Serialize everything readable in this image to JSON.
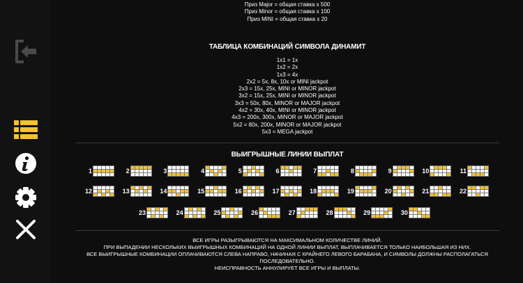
{
  "colors": {
    "accent": "#f6c12d",
    "background": "#0e0e0e",
    "text": "#ffffff"
  },
  "sidebar": {
    "items": [
      {
        "name": "exit-icon",
        "state": "disabled"
      },
      {
        "name": "paytable-list-icon",
        "state": "active"
      },
      {
        "name": "info-icon",
        "state": "normal"
      },
      {
        "name": "settings-gear-icon",
        "state": "normal"
      },
      {
        "name": "close-icon",
        "state": "normal"
      }
    ]
  },
  "jackpots": [
    "Приз Major = общая ставка x 500",
    "Приз Minor = общая ставка x 100",
    "Приз MINI = общая ставка x 20"
  ],
  "dynamite": {
    "title": "ТАБЛИЦА КОМБИНАЦИЙ СИМВОЛА ДИНАМИТ",
    "rows": [
      "1x1 = 1x",
      "1x2 = 2x",
      "1x3 = 4x",
      "2x2 = 5x, 8x, 10x or MINI jackpot",
      "2x3 = 15x, 25x, MINI or MINOR jackpot",
      "3x2 = 15x, 25x, MINI or MINOR jackpot",
      "3x3 = 50x, 80x, MINOR or MAJOR jackpot",
      "4x2 = 30x, 40x, MINI or MINOR jackpot",
      "4x3 = 200x, 300x, MINOR or MAJOR jackpot",
      "5x2 = 80x, 200x, MINOR or MAJOR jackpot",
      "5x3 = MEGA jackpot"
    ]
  },
  "paylines": {
    "title": "ВЫИГРЫШНЫЕ ЛИНИИ ВЫПЛАТ",
    "lines": [
      {
        "n": "1",
        "rows": [
          1,
          1,
          1,
          1,
          1
        ]
      },
      {
        "n": "2",
        "rows": [
          0,
          0,
          0,
          0,
          0
        ]
      },
      {
        "n": "3",
        "rows": [
          2,
          2,
          2,
          2,
          2
        ]
      },
      {
        "n": "4",
        "rows": [
          0,
          1,
          2,
          1,
          0
        ]
      },
      {
        "n": "5",
        "rows": [
          2,
          1,
          0,
          1,
          2
        ]
      },
      {
        "n": "6",
        "rows": [
          0,
          0,
          1,
          0,
          0
        ]
      },
      {
        "n": "7",
        "rows": [
          2,
          2,
          1,
          2,
          2
        ]
      },
      {
        "n": "8",
        "rows": [
          1,
          2,
          2,
          2,
          1
        ]
      },
      {
        "n": "9",
        "rows": [
          1,
          0,
          0,
          0,
          1
        ]
      },
      {
        "n": "10",
        "rows": [
          2,
          0,
          0,
          0,
          2
        ]
      },
      {
        "n": "11",
        "rows": [
          0,
          2,
          2,
          2,
          0
        ]
      },
      {
        "n": "12",
        "rows": [
          2,
          1,
          2,
          1,
          2
        ]
      },
      {
        "n": "13",
        "rows": [
          0,
          1,
          0,
          1,
          0
        ]
      },
      {
        "n": "14",
        "rows": [
          1,
          1,
          2,
          1,
          1
        ]
      },
      {
        "n": "15",
        "rows": [
          1,
          1,
          0,
          1,
          1
        ]
      },
      {
        "n": "16",
        "rows": [
          1,
          0,
          1,
          0,
          1
        ]
      },
      {
        "n": "17",
        "rows": [
          1,
          2,
          1,
          2,
          1
        ]
      },
      {
        "n": "18",
        "rows": [
          2,
          1,
          1,
          1,
          2
        ]
      },
      {
        "n": "19",
        "rows": [
          0,
          1,
          1,
          1,
          0
        ]
      },
      {
        "n": "20",
        "rows": [
          1,
          0,
          2,
          0,
          1
        ]
      },
      {
        "n": "21",
        "rows": [
          2,
          2,
          0,
          2,
          2
        ]
      },
      {
        "n": "22",
        "rows": [
          0,
          0,
          2,
          0,
          0
        ]
      },
      {
        "n": "23",
        "rows": [
          0,
          2,
          0,
          2,
          0
        ]
      },
      {
        "n": "24",
        "rows": [
          2,
          0,
          2,
          0,
          2
        ]
      },
      {
        "n": "25",
        "rows": [
          1,
          2,
          0,
          2,
          1
        ]
      },
      {
        "n": "26",
        "rows": [
          0,
          1,
          2,
          2,
          2
        ]
      },
      {
        "n": "27",
        "rows": [
          2,
          1,
          0,
          0,
          0
        ]
      },
      {
        "n": "28",
        "rows": [
          0,
          0,
          0,
          1,
          2
        ]
      },
      {
        "n": "29",
        "rows": [
          2,
          2,
          2,
          1,
          0
        ]
      },
      {
        "n": "30",
        "rows": [
          0,
          0,
          1,
          2,
          2
        ]
      }
    ]
  },
  "rules": [
    "ВСЕ ИГРЫ РАЗЫГРЫВАЮТСЯ НА МАКСИМАЛЬНОМ КОЛИЧЕСТВЕ ЛИНИЙ.",
    "ПРИ ВЫПАДЕНИИ НЕСКОЛЬКИХ ВЫИГРЫШНЫХ КОМБИНАЦИЙ НА ОДНОЙ ЛИНИИ ВЫПЛАТ, ВЫПЛАЧИВАЕТСЯ ТОЛЬКО НАИБОЛЬШАЯ ИЗ НИХ.",
    "ВСЕ ВЫИГРЫШНЫЕ КОМБИНАЦИИ ОПЛАЧИВАЮТСЯ СЛЕВА НАПРАВО, НАЧИНАЯ С КРАЙНЕГО ЛЕВОГО БАРАБАНА, И СИМВОЛЫ ДОЛЖНЫ РАСПОЛАГАТЬСЯ ПОСЛЕДОВАТЕЛЬНО.",
    "НЕИСПРАВНОСТЬ АННУЛИРУЕТ ВСЕ ИГРЫ И ВЫПЛАТЫ."
  ]
}
